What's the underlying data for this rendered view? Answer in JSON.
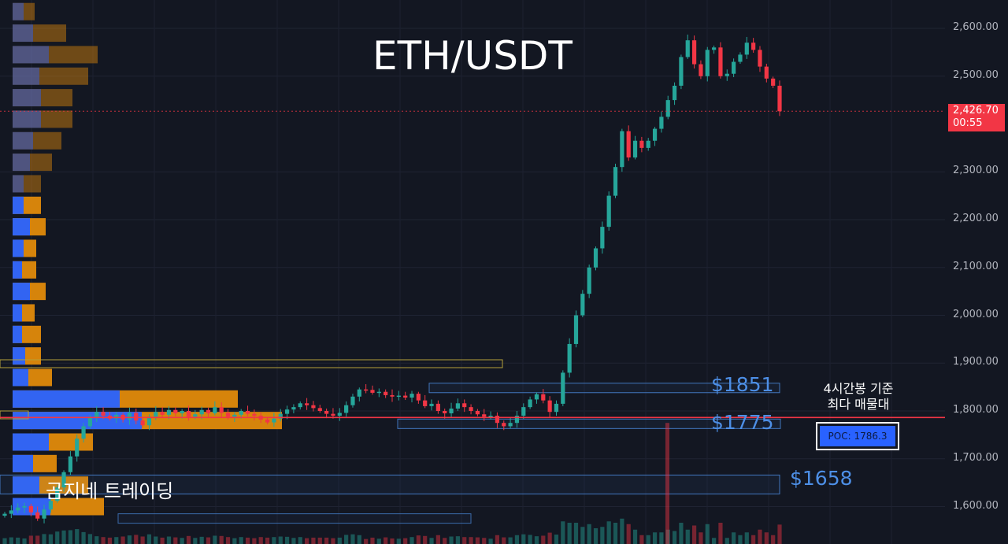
{
  "title": "ETH/USDT",
  "levels": [
    "$1851",
    "$1775",
    "$1658"
  ],
  "brand_text": "곰지네 트레이딩",
  "annotation": [
    "4시간봉 기준",
    "최다 매물대"
  ],
  "poc_label": "POC: 1786.3",
  "current_price": {
    "value": "2,426.70",
    "countdown": "00:55"
  },
  "colors": {
    "background": "#131722",
    "up": "#26a69a",
    "down": "#f23645",
    "volume_buy": "#2962ff",
    "volume_sell": "#e08a0b",
    "level_line": "#4d8fe6",
    "poc_line": "#f23645"
  },
  "chart_data": {
    "type": "candlestick",
    "title": "ETH/USDT",
    "y_ticks": [
      "2,600.00",
      "2,500.00",
      "2,300.00",
      "2,200.00",
      "2,100.00",
      "2,000.00",
      "1,900.00",
      "1,800.00",
      "1,700.00",
      "1,600.00"
    ],
    "y_range": [
      1570,
      2645
    ],
    "grid": true,
    "price_series": [
      1585,
      1592,
      1598,
      1601,
      1588,
      1575,
      1594,
      1612,
      1640,
      1672,
      1705,
      1742,
      1768,
      1787,
      1798,
      1790,
      1784,
      1792,
      1782,
      1796,
      1780,
      1770,
      1788,
      1798,
      1792,
      1802,
      1795,
      1800,
      1788,
      1793,
      1802,
      1795,
      1808,
      1796,
      1788,
      1792,
      1800,
      1794,
      1790,
      1782,
      1776,
      1784,
      1794,
      1803,
      1808,
      1816,
      1812,
      1806,
      1800,
      1794,
      1790,
      1796,
      1812,
      1830,
      1845,
      1844,
      1838,
      1840,
      1833,
      1830,
      1832,
      1828,
      1836,
      1822,
      1810,
      1815,
      1800,
      1795,
      1805,
      1816,
      1808,
      1800,
      1793,
      1788,
      1790,
      1775,
      1768,
      1775,
      1790,
      1808,
      1824,
      1835,
      1822,
      1798,
      1815,
      1880,
      1940,
      2000,
      2045,
      2100,
      2140,
      2185,
      2250,
      2310,
      2385,
      2330,
      2365,
      2350,
      2365,
      2390,
      2415,
      2450,
      2480,
      2540,
      2575,
      2525,
      2500,
      2555,
      2560,
      2500,
      2505,
      2530,
      2545,
      2570,
      2555,
      2520,
      2495,
      2480,
      2426.7
    ],
    "current_price": 2426.7,
    "levels": [
      1851,
      1775,
      1658
    ],
    "poc": 1786.3,
    "volume_profile": [
      {
        "price": 2635,
        "buy": 14,
        "sell": 28
      },
      {
        "price": 2590,
        "buy": 26,
        "sell": 68
      },
      {
        "price": 2545,
        "buy": 46,
        "sell": 108
      },
      {
        "price": 2500,
        "buy": 34,
        "sell": 96
      },
      {
        "price": 2455,
        "buy": 36,
        "sell": 76
      },
      {
        "price": 2410,
        "buy": 36,
        "sell": 76
      },
      {
        "price": 2365,
        "buy": 26,
        "sell": 62
      },
      {
        "price": 2320,
        "buy": 22,
        "sell": 50
      },
      {
        "price": 2275,
        "buy": 14,
        "sell": 36
      },
      {
        "price": 2230,
        "buy": 14,
        "sell": 36
      },
      {
        "price": 2185,
        "buy": 22,
        "sell": 42
      },
      {
        "price": 2140,
        "buy": 14,
        "sell": 30
      },
      {
        "price": 2095,
        "buy": 12,
        "sell": 30
      },
      {
        "price": 2050,
        "buy": 22,
        "sell": 42
      },
      {
        "price": 2005,
        "buy": 12,
        "sell": 28
      },
      {
        "price": 1960,
        "buy": 12,
        "sell": 36
      },
      {
        "price": 1915,
        "buy": 16,
        "sell": 36
      },
      {
        "price": 1870,
        "buy": 20,
        "sell": 50
      },
      {
        "price": 1825,
        "buy": 136,
        "sell": 286
      },
      {
        "price": 1780,
        "buy": 164,
        "sell": 342
      },
      {
        "price": 1735,
        "buy": 46,
        "sell": 102
      },
      {
        "price": 1690,
        "buy": 26,
        "sell": 56
      },
      {
        "price": 1645,
        "buy": 34,
        "sell": 96
      },
      {
        "price": 1600,
        "buy": 48,
        "sell": 116
      }
    ]
  }
}
